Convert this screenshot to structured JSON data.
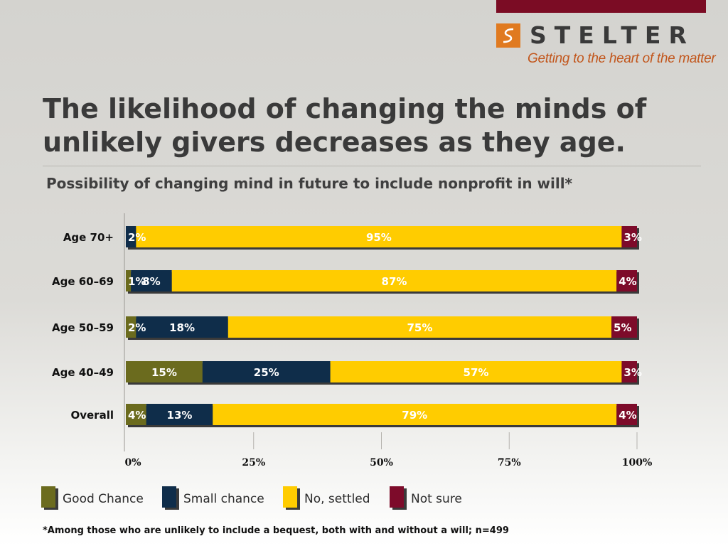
{
  "header": {
    "logo_name": "STELTER",
    "logo_tagline": "Getting to the heart of the matter",
    "title": "The likelihood of changing the minds of unlikely givers decreases as they age.",
    "subtitle": "Possibility of changing mind in future to include nonprofit in will*"
  },
  "colors": {
    "brand_bar": "#7b0c24",
    "logo_orange": "#e07a20",
    "good_chance": "#6b6b1e",
    "small_chance": "#0f2d4a",
    "no_settled": "#ffcc00",
    "not_sure": "#7d0b2a"
  },
  "chart_data": {
    "type": "bar",
    "orientation": "horizontal",
    "stacked": true,
    "categories": [
      "Age 70+",
      "Age 60–69",
      "Age 50–59",
      "Age 40–49",
      "Overall"
    ],
    "series": [
      {
        "name": "Good Chance",
        "color": "#6b6b1e",
        "values": [
          0,
          1,
          2,
          15,
          4
        ],
        "labels": [
          "",
          "1%",
          "2%",
          "15%",
          "4%"
        ]
      },
      {
        "name": "Small chance",
        "color": "#0f2d4a",
        "values": [
          2,
          8,
          18,
          25,
          13
        ],
        "labels": [
          "2%",
          "8%",
          "18%",
          "25%",
          "13%"
        ]
      },
      {
        "name": "No, settled",
        "color": "#ffcc00",
        "values": [
          95,
          87,
          75,
          57,
          79
        ],
        "labels": [
          "95%",
          "87%",
          "75%",
          "57%",
          "79%"
        ]
      },
      {
        "name": "Not sure",
        "color": "#7d0b2a",
        "values": [
          3,
          4,
          5,
          3,
          4
        ],
        "labels": [
          "3%",
          "4%",
          "5%",
          "3%",
          "4%"
        ]
      }
    ],
    "xlim": [
      0,
      100
    ],
    "xticks": [
      0,
      25,
      50,
      75,
      100
    ],
    "xtick_labels": [
      "0%",
      "25%",
      "50%",
      "75%",
      "100%"
    ],
    "legend_position": "bottom"
  },
  "legend": [
    {
      "label": "Good Chance",
      "color": "#6b6b1e"
    },
    {
      "label": "Small chance",
      "color": "#0f2d4a"
    },
    {
      "label": "No, settled",
      "color": "#ffcc00"
    },
    {
      "label": "Not sure",
      "color": "#7d0b2a"
    }
  ],
  "footnote": "*Among those who are unlikely to include a bequest, both with and without a will; n=499"
}
